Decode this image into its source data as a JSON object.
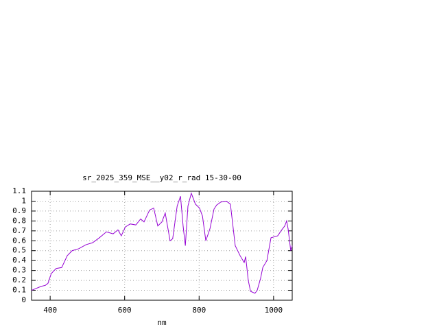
{
  "chart_data": {
    "type": "line",
    "title": "sr_2025_359_MSE__y02_r_rad 15-30-00",
    "x_label": "nm",
    "x": [
      350,
      376,
      387,
      394,
      403,
      416,
      431,
      446,
      459,
      477,
      496,
      514,
      532,
      551,
      569,
      582,
      591,
      602,
      615,
      630,
      643,
      652,
      667,
      678,
      689,
      700,
      709,
      722,
      729,
      741,
      750,
      757,
      763,
      770,
      779,
      790,
      801,
      809,
      818,
      829,
      840,
      847,
      858,
      873,
      884,
      897,
      910,
      921,
      925,
      932,
      938,
      950,
      956,
      965,
      971,
      982,
      993,
      1011,
      1020,
      1030,
      1035,
      1039,
      1046,
      1050
    ],
    "series": [
      {
        "name": "sr_2025_359_MSE__y02_r_rad",
        "color": "#9400d3",
        "values": [
          0.1,
          0.14,
          0.15,
          0.17,
          0.27,
          0.32,
          0.33,
          0.45,
          0.5,
          0.52,
          0.56,
          0.58,
          0.63,
          0.69,
          0.67,
          0.71,
          0.65,
          0.74,
          0.77,
          0.76,
          0.82,
          0.79,
          0.91,
          0.93,
          0.75,
          0.79,
          0.88,
          0.6,
          0.62,
          0.95,
          1.05,
          0.75,
          0.55,
          0.95,
          1.08,
          0.97,
          0.93,
          0.85,
          0.6,
          0.72,
          0.92,
          0.96,
          0.99,
          1.0,
          0.97,
          0.55,
          0.45,
          0.38,
          0.44,
          0.2,
          0.09,
          0.07,
          0.1,
          0.22,
          0.33,
          0.4,
          0.63,
          0.65,
          0.7,
          0.75,
          0.8,
          0.72,
          0.5,
          0.55
        ]
      }
    ],
    "xlim": [
      350,
      1050
    ],
    "ylim": [
      0,
      1.1
    ],
    "xticks": [
      400,
      600,
      800,
      1000
    ],
    "yticks": [
      0,
      0.1,
      0.2,
      0.3,
      0.4,
      0.5,
      0.6,
      0.7,
      0.8,
      0.9,
      1,
      1.1
    ],
    "grid": true
  }
}
